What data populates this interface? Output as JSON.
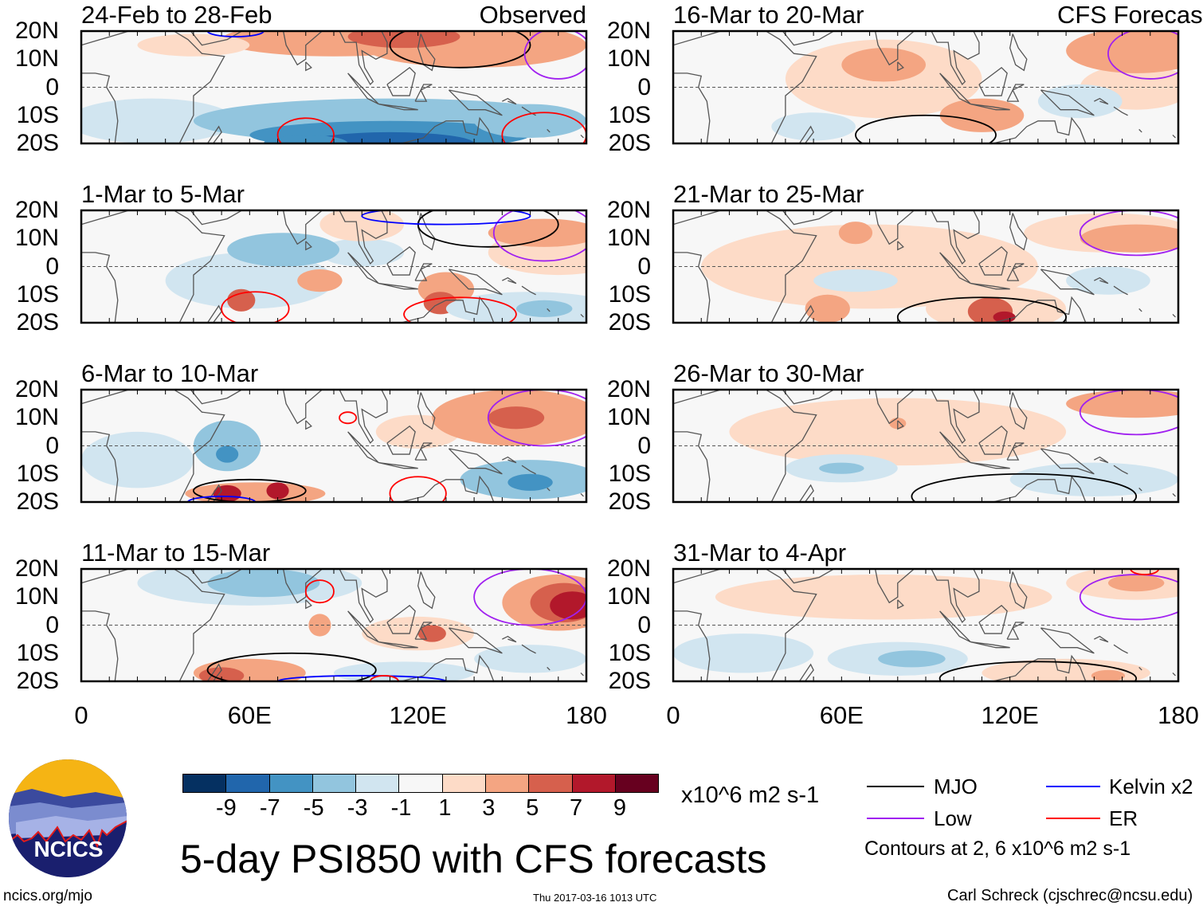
{
  "header": {
    "observed_label": "Observed",
    "forecast_label": "CFS Forecast"
  },
  "axes": {
    "lat_labels": [
      "20N",
      "10N",
      "0",
      "10S",
      "20S"
    ],
    "lon_labels": [
      "0",
      "60E",
      "120E",
      "180"
    ]
  },
  "colors": {
    "scale": [
      "#053061",
      "#2166ac",
      "#4393c3",
      "#92c5de",
      "#d1e5f0",
      "#f7f7f7",
      "#fddbc7",
      "#f4a582",
      "#d6604d",
      "#b2182b",
      "#67001f"
    ],
    "MJO": "#000000",
    "Low": "#a020f0",
    "Kelvin": "#0000ff",
    "ER": "#ff0000",
    "coast": "#555555"
  },
  "colorbar": {
    "ticks": [
      "-9",
      "-7",
      "-5",
      "-3",
      "-1",
      "1",
      "3",
      "5",
      "7",
      "9"
    ],
    "units": "x10^6 m2 s-1"
  },
  "title": "5-day PSI850 with CFS forecasts",
  "legend": {
    "items": [
      {
        "type": "MJO",
        "label": "MJO"
      },
      {
        "type": "Kelvin",
        "label": "Kelvin x2"
      },
      {
        "type": "Low",
        "label": "Low"
      },
      {
        "type": "ER",
        "label": "ER"
      }
    ],
    "note": "Contours at 2, 6 x10^6 m2 s-1"
  },
  "logo": {
    "text": "NCICS"
  },
  "footer": {
    "url": "ncics.org/mjo",
    "timestamp": "Thu 2017-03-16 1013 UTC",
    "credit": "Carl Schreck (cjschrec@ncsu.edu)"
  },
  "chart_data": {
    "type": "map",
    "variable": "850-hPa streamfunction anomaly (x10^6 m2 s-1)",
    "lon_range": [
      0,
      180
    ],
    "lat_range": [
      -20,
      20
    ],
    "feature_format": "fills: [lon, lat, lon_radius, lat_radius, level(-5..5)]; contours: [type, lon, lat, lon_radius, lat_radius]",
    "panels": [
      {
        "title": "24-Feb to 28-Feb",
        "tag": "Observed",
        "column": "left",
        "fills": [
          [
            90,
            17,
            40,
            6,
            2
          ],
          [
            140,
            15,
            40,
            8,
            2
          ],
          [
            115,
            18,
            20,
            4,
            3
          ],
          [
            40,
            15,
            20,
            4,
            1
          ],
          [
            25,
            -12,
            30,
            8,
            -1
          ],
          [
            110,
            -12,
            70,
            8,
            -2
          ],
          [
            110,
            -17,
            50,
            5,
            -3
          ],
          [
            110,
            -20,
            30,
            4,
            -4
          ],
          [
            80,
            -20,
            15,
            3,
            -3
          ],
          [
            160,
            -12,
            20,
            6,
            -2
          ]
        ],
        "contours": [
          [
            "MJO",
            135,
            15,
            25,
            8
          ],
          [
            "Low",
            170,
            12,
            12,
            9
          ],
          [
            "ER",
            80,
            -17,
            10,
            6
          ],
          [
            "ER",
            165,
            -17,
            15,
            8
          ],
          [
            "Kelvin",
            55,
            20,
            10,
            2
          ]
        ]
      },
      {
        "title": "1-Mar to 5-Mar",
        "tag": "",
        "column": "left",
        "fills": [
          [
            60,
            -5,
            30,
            10,
            -1
          ],
          [
            100,
            5,
            15,
            5,
            -1
          ],
          [
            72,
            6,
            20,
            6,
            -2
          ],
          [
            100,
            15,
            15,
            6,
            1
          ],
          [
            170,
            5,
            25,
            8,
            1
          ],
          [
            165,
            12,
            20,
            5,
            2
          ],
          [
            130,
            -8,
            10,
            6,
            2
          ],
          [
            57,
            -12,
            5,
            4,
            3
          ],
          [
            128,
            -13,
            6,
            4,
            3
          ],
          [
            160,
            -15,
            30,
            6,
            -1
          ],
          [
            165,
            -15,
            10,
            3,
            -2
          ],
          [
            85,
            -5,
            8,
            4,
            2
          ]
        ],
        "contours": [
          [
            "MJO",
            145,
            15,
            25,
            8
          ],
          [
            "Low",
            165,
            12,
            18,
            10
          ],
          [
            "ER",
            62,
            -15,
            12,
            6
          ],
          [
            "ER",
            135,
            -17,
            20,
            6
          ],
          [
            "Kelvin",
            130,
            18,
            30,
            3
          ]
        ]
      },
      {
        "title": "6-Mar to 10-Mar",
        "tag": "",
        "column": "left",
        "fills": [
          [
            20,
            -5,
            20,
            10,
            -1
          ],
          [
            120,
            5,
            15,
            6,
            1
          ],
          [
            155,
            10,
            30,
            10,
            2
          ],
          [
            155,
            10,
            10,
            4,
            3
          ],
          [
            52,
            0,
            12,
            9,
            -2
          ],
          [
            52,
            -3,
            4,
            3,
            -3
          ],
          [
            62,
            -17,
            25,
            4,
            2
          ],
          [
            52,
            -17,
            5,
            3,
            4
          ],
          [
            70,
            -16,
            4,
            3,
            4
          ],
          [
            160,
            -12,
            25,
            7,
            -2
          ],
          [
            160,
            -13,
            8,
            3,
            -3
          ]
        ],
        "contours": [
          [
            "MJO",
            60,
            -16,
            20,
            4
          ],
          [
            "Low",
            165,
            10,
            20,
            10
          ],
          [
            "ER",
            95,
            10,
            3,
            2
          ],
          [
            "ER",
            120,
            -17,
            10,
            6
          ],
          [
            "Kelvin",
            50,
            -20,
            12,
            2
          ]
        ]
      },
      {
        "title": "11-Mar to 15-Mar",
        "tag": "",
        "column": "left",
        "fills": [
          [
            60,
            15,
            40,
            8,
            -1
          ],
          [
            65,
            15,
            20,
            5,
            -2
          ],
          [
            170,
            8,
            20,
            10,
            2
          ],
          [
            172,
            8,
            12,
            7,
            3
          ],
          [
            175,
            7,
            8,
            5,
            4
          ],
          [
            85,
            0,
            4,
            4,
            2
          ],
          [
            120,
            -3,
            20,
            6,
            1
          ],
          [
            125,
            -3,
            5,
            3,
            3
          ],
          [
            60,
            -17,
            20,
            5,
            2
          ],
          [
            50,
            -18,
            8,
            3,
            3
          ],
          [
            115,
            -17,
            25,
            4,
            -1
          ],
          [
            160,
            -12,
            20,
            5,
            -1
          ]
        ],
        "contours": [
          [
            "MJO",
            75,
            -16,
            30,
            6
          ],
          [
            "Low",
            160,
            10,
            20,
            10
          ],
          [
            "ER",
            85,
            12,
            5,
            4
          ],
          [
            "Kelvin",
            100,
            -20,
            30,
            2
          ],
          [
            "ER",
            108,
            -20,
            5,
            2
          ]
        ]
      },
      {
        "title": "16-Mar to 20-Mar",
        "tag": "CFS Forecast",
        "column": "right",
        "fills": [
          [
            75,
            3,
            35,
            14,
            1
          ],
          [
            75,
            8,
            15,
            6,
            2
          ],
          [
            110,
            -10,
            15,
            6,
            2
          ],
          [
            165,
            0,
            20,
            8,
            1
          ],
          [
            165,
            13,
            25,
            8,
            2
          ],
          [
            50,
            -14,
            15,
            5,
            -1
          ],
          [
            145,
            -5,
            15,
            6,
            -1
          ]
        ],
        "contours": [
          [
            "MJO",
            90,
            -17,
            25,
            7
          ],
          [
            "Low",
            170,
            12,
            15,
            9
          ]
        ]
      },
      {
        "title": "21-Mar to 25-Mar",
        "tag": "",
        "column": "right",
        "fills": [
          [
            70,
            0,
            60,
            15,
            1
          ],
          [
            65,
            12,
            6,
            4,
            2
          ],
          [
            115,
            -15,
            25,
            8,
            1
          ],
          [
            113,
            -16,
            8,
            5,
            3
          ],
          [
            118,
            -18,
            4,
            2,
            4
          ],
          [
            155,
            12,
            30,
            7,
            1
          ],
          [
            165,
            10,
            20,
            5,
            2
          ],
          [
            65,
            -5,
            15,
            4,
            -1
          ],
          [
            155,
            -5,
            15,
            5,
            -1
          ],
          [
            55,
            -15,
            8,
            5,
            2
          ]
        ],
        "contours": [
          [
            "MJO",
            110,
            -18,
            30,
            7
          ],
          [
            "Low",
            165,
            12,
            20,
            8
          ]
        ]
      },
      {
        "title": "26-Mar to 30-Mar",
        "tag": "",
        "column": "right",
        "fills": [
          [
            80,
            5,
            60,
            12,
            1
          ],
          [
            60,
            -8,
            20,
            5,
            -1
          ],
          [
            60,
            -8,
            8,
            2,
            -2
          ],
          [
            150,
            -12,
            30,
            6,
            -1
          ],
          [
            165,
            15,
            25,
            5,
            2
          ],
          [
            80,
            8,
            3,
            2,
            2
          ]
        ],
        "contours": [
          [
            "MJO",
            125,
            -18,
            40,
            8
          ],
          [
            "Low",
            165,
            12,
            20,
            8
          ]
        ]
      },
      {
        "title": "31-Mar to 4-Apr",
        "tag": "",
        "column": "right",
        "fills": [
          [
            75,
            10,
            60,
            8,
            1
          ],
          [
            165,
            15,
            25,
            6,
            1
          ],
          [
            165,
            15,
            10,
            3,
            2
          ],
          [
            25,
            -10,
            25,
            7,
            -1
          ],
          [
            80,
            -12,
            25,
            6,
            -1
          ],
          [
            85,
            -12,
            12,
            3,
            -2
          ],
          [
            140,
            -17,
            30,
            5,
            1
          ],
          [
            155,
            -18,
            6,
            2,
            2
          ]
        ],
        "contours": [
          [
            "MJO",
            130,
            -19,
            35,
            6
          ],
          [
            "Low",
            165,
            10,
            20,
            8
          ],
          [
            "ER",
            168,
            20,
            5,
            2
          ]
        ]
      }
    ]
  }
}
